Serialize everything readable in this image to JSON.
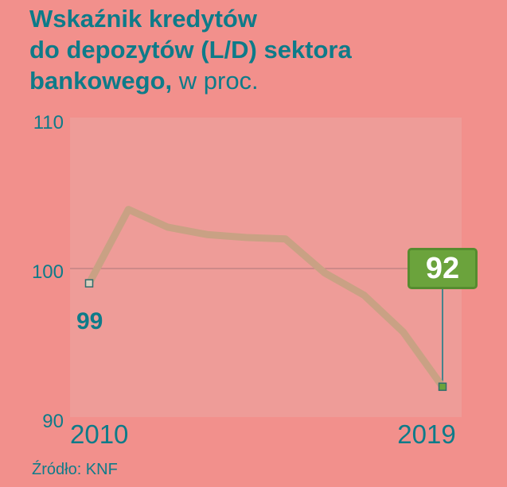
{
  "title": {
    "line1": "Wskaźnik kredytów",
    "line2": "do depozytów (L/D) sektora",
    "line3_bold": "bankowego,",
    "line3_light": " w proc."
  },
  "source": {
    "label": "Źródło: KNF"
  },
  "colors": {
    "background": "#f2908c",
    "plot_background": "#ee9c98",
    "accent_teal": "#0e7b89",
    "line": "#c9a184",
    "gridline": "#b07c7c",
    "badge_green": "#6ba33c",
    "badge_border": "#568c2f",
    "badge_text": "#ffffff",
    "marker_start_fill": "#d9cfc0",
    "marker_end_fill": "#6ba33c",
    "marker_stroke": "#2f6d6d"
  },
  "chart_data": {
    "type": "line",
    "title": "Wskaźnik kredytów do depozytów (L/D) sektora bankowego, w proc.",
    "x": [
      2010,
      2011,
      2012,
      2013,
      2014,
      2015,
      2016,
      2017,
      2018,
      2019
    ],
    "values": [
      99,
      104,
      102.8,
      102.3,
      102.1,
      102,
      99.7,
      98.2,
      95.7,
      92
    ],
    "ylim": [
      90,
      110
    ],
    "yticks": [
      "110",
      "100",
      "90"
    ],
    "xtick_labels": [
      "2010",
      "2019"
    ],
    "gridline_at": 100,
    "grid": "single horizontal line at 100",
    "legend_position": "none",
    "annotations": {
      "start_label": "99",
      "end_label": "92"
    },
    "source": "Źródło: KNF"
  }
}
